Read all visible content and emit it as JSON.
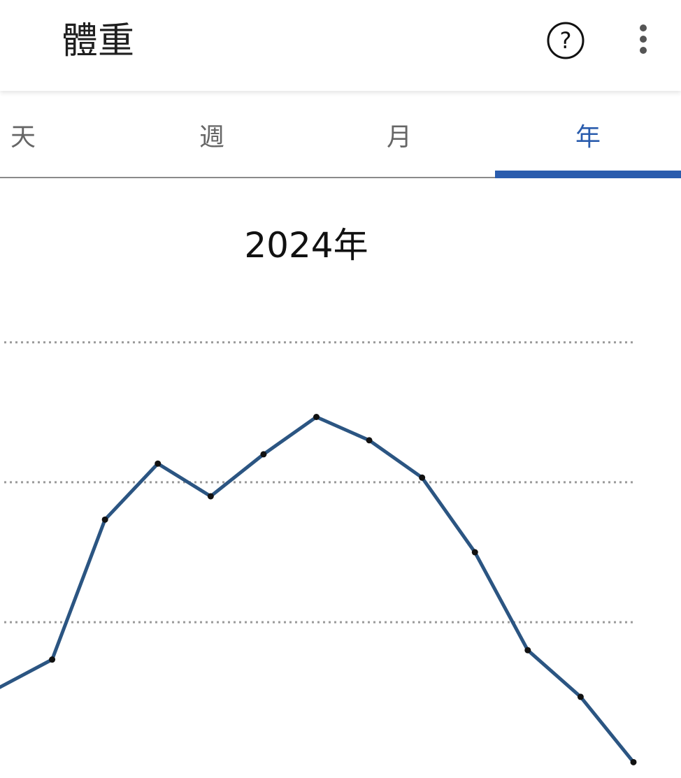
{
  "header": {
    "title": "體重",
    "help_icon": "help-circle-icon",
    "more_icon": "more-vert-icon"
  },
  "tabs": [
    {
      "label": "天",
      "active": false
    },
    {
      "label": "週",
      "active": false
    },
    {
      "label": "月",
      "active": false
    },
    {
      "label": "年",
      "active": true
    }
  ],
  "colors": {
    "accent": "#2a5cad",
    "line": "#2b5582",
    "point": "#111111",
    "grid": "#9a9a9a"
  },
  "chart_data": {
    "type": "line",
    "title": "2024年",
    "xlabel": "",
    "ylabel": "",
    "grid": true,
    "x": [
      1,
      2,
      3,
      4,
      5,
      6,
      7,
      8,
      9,
      10,
      11,
      12,
      13
    ],
    "series": [
      {
        "values": [
          52.6,
          53.2,
          56.2,
          57.4,
          56.7,
          57.6,
          58.4,
          57.9,
          57.1,
          55.5,
          53.4,
          52.4,
          51.0
        ]
      }
    ],
    "gridlines": [
      54,
      57,
      60
    ],
    "ylim": [
      50.9,
      61.0
    ]
  }
}
